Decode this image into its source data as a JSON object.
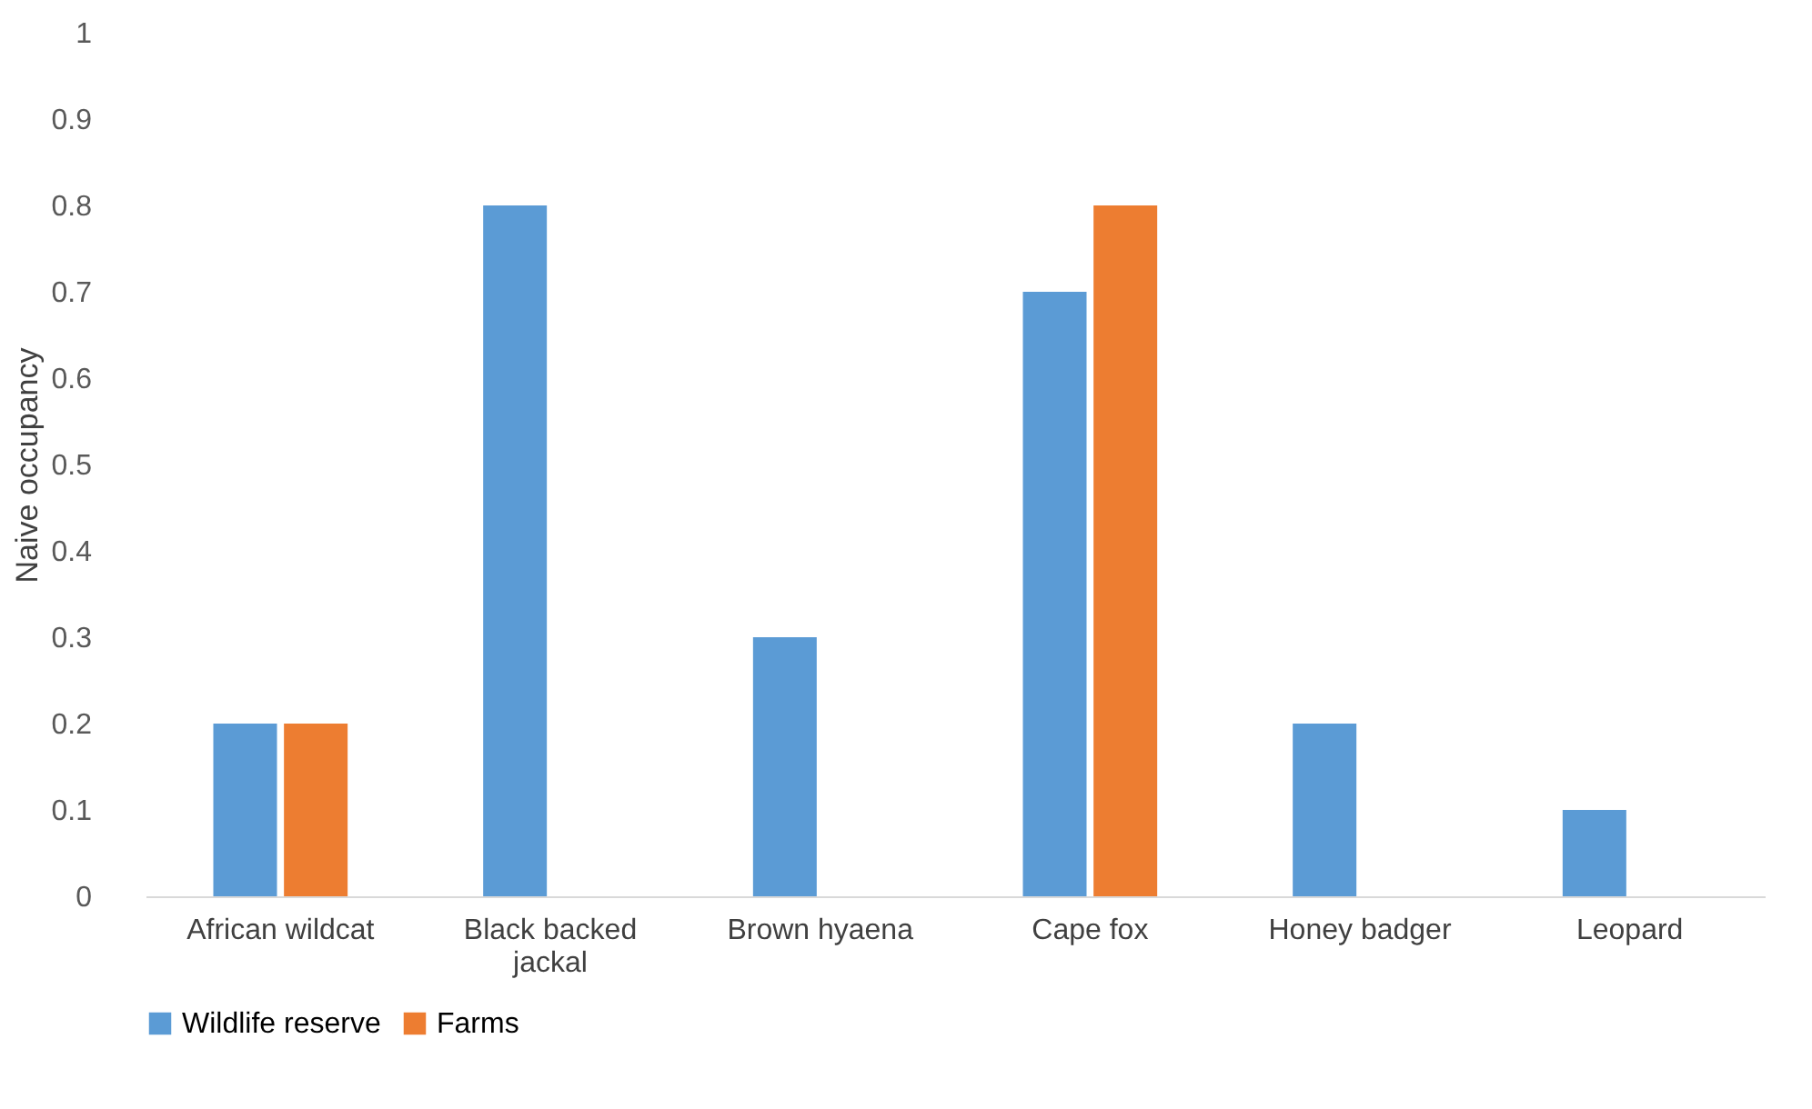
{
  "chart_data": {
    "type": "bar",
    "ylabel": "Naive occupancy",
    "categories": [
      "African wildcat",
      "Black backed jackal",
      "Brown hyaena",
      "Cape fox",
      "Honey badger",
      "Leopard"
    ],
    "series": [
      {
        "name": "Wildlife reserve",
        "color": "#5b9bd5",
        "values": [
          0.2,
          0.8,
          0.3,
          0.7,
          0.2,
          0.1
        ]
      },
      {
        "name": "Farms",
        "color": "#ed7d31",
        "values": [
          0.2,
          0,
          0,
          0.8,
          0,
          0
        ]
      }
    ],
    "ylim": [
      0,
      1
    ],
    "yticks": [
      0,
      0.1,
      0.2,
      0.3,
      0.4,
      0.5,
      0.6,
      0.7,
      0.8,
      0.9,
      1
    ],
    "grid": false,
    "legend": "bottom"
  }
}
